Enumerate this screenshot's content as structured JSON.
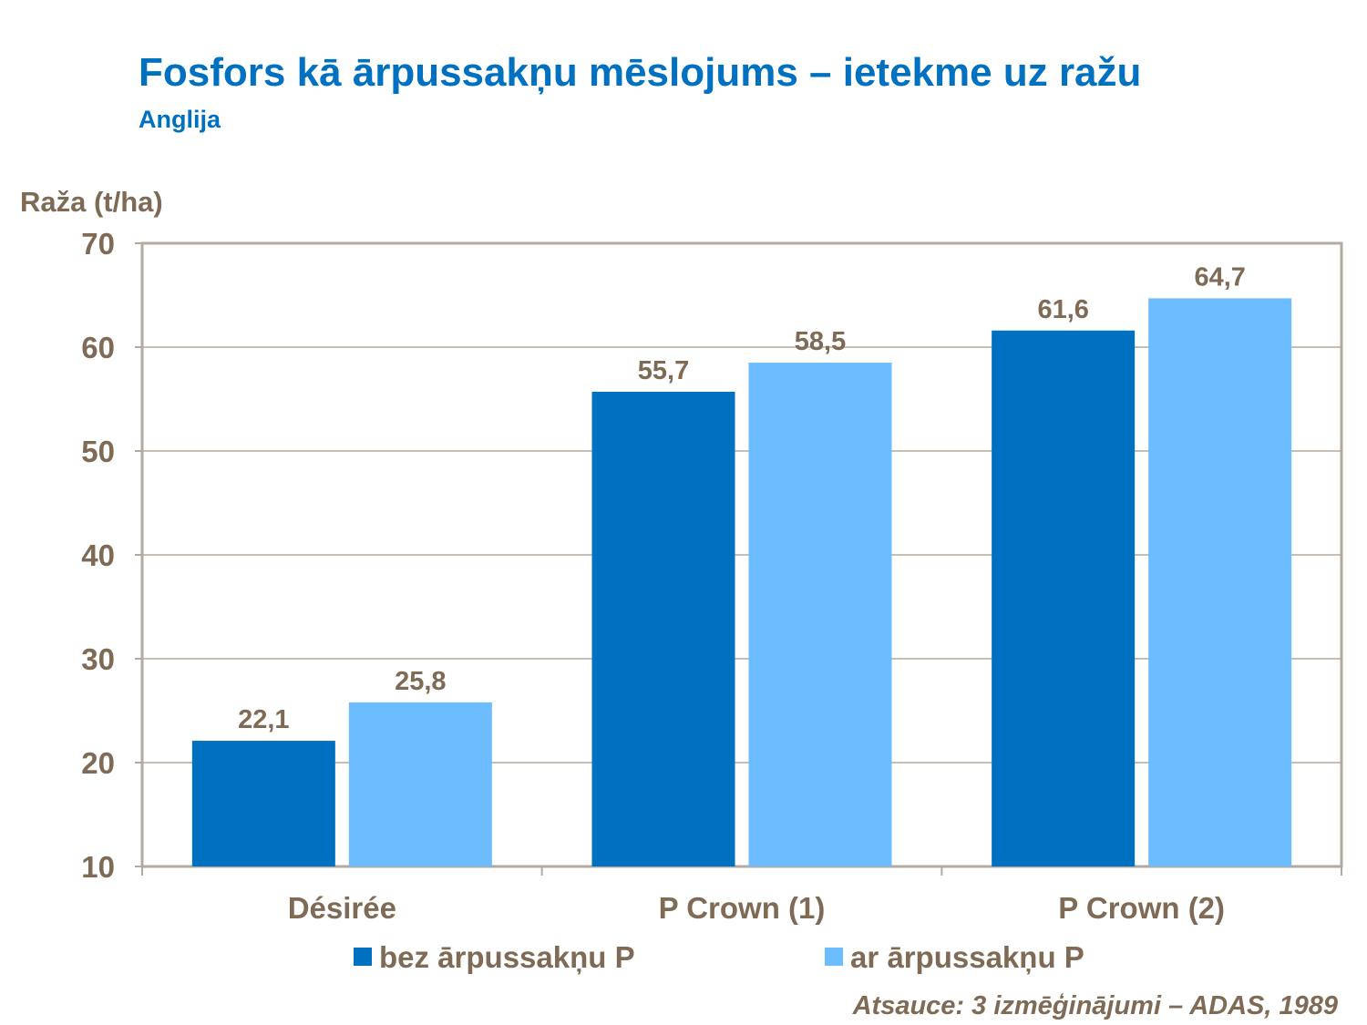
{
  "header": {
    "title": "Fosfors kā ārpussakņu mēslojums – ietekme uz ražu",
    "subtitle": "Anglija"
  },
  "footer": {
    "source": "Atsauce: 3 izmēģinājumi – ADAS, 1989"
  },
  "colors": {
    "title": "#0070c0",
    "text": "#7f6b55",
    "axis": "#b3aa9f",
    "series_dark": "#0070c0",
    "series_light": "#6bbdff"
  },
  "chart_data": {
    "type": "bar",
    "title": "Fosfors kā ārpussakņu mēslojums – ietekme uz ražu",
    "subtitle": "Anglija",
    "ylabel": "Raža (t/ha)",
    "xlabel": "",
    "ylim": [
      10,
      70
    ],
    "yticks": [
      "10",
      "20",
      "30",
      "40",
      "50",
      "60",
      "70"
    ],
    "ytick_values": [
      10,
      20,
      30,
      40,
      50,
      60,
      70
    ],
    "grid": true,
    "legend_position": "bottom",
    "categories": [
      "Désirée",
      "P Crown (1)",
      "P Crown (2)"
    ],
    "series": [
      {
        "name": "bez ārpussakņu P",
        "color": "#0070c0",
        "values": [
          22.1,
          55.7,
          61.6
        ],
        "labels": [
          "22,1",
          "55,7",
          "61,6"
        ]
      },
      {
        "name": "ar ārpussakņu P",
        "color": "#6bbdff",
        "values": [
          25.8,
          58.5,
          64.7
        ],
        "labels": [
          "25,8",
          "58,5",
          "64,7"
        ]
      }
    ]
  }
}
